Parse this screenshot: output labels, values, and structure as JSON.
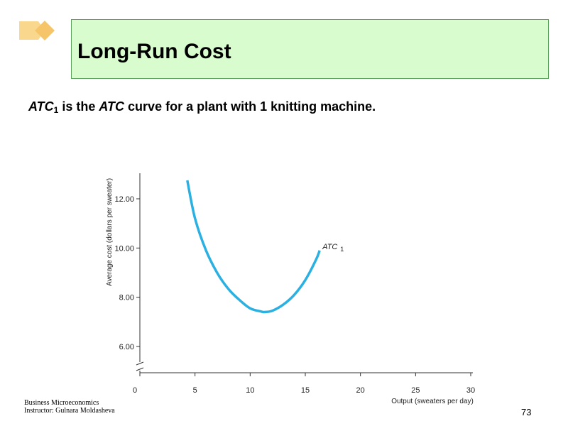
{
  "slide": {
    "title": "Long-Run Cost",
    "subtitle": {
      "part1": "ATC",
      "part1_sub": "1",
      "part2": " is the ",
      "part3": "ATC",
      "part4": " curve for a plant  with 1 knitting  machine."
    },
    "footer_line1": "Business Microeconomics",
    "footer_line2": "Instructor: Gulnara Moldasheva",
    "page_number": "73"
  },
  "colors": {
    "title_bg": "#d9fccf",
    "title_border": "#5aa05a",
    "logo": "#f9d88e",
    "curve": "#2bb0e2"
  },
  "icons": {
    "logo": "diamond-arrow-icon"
  },
  "chart_data": {
    "type": "line",
    "xlabel": "Output (sweaters per day)",
    "ylabel": "Average cost (dollars per sweater)",
    "xlim": [
      0,
      30
    ],
    "ylim": [
      6.0,
      13.0
    ],
    "axis_break": true,
    "x_ticks": [
      "0",
      "5",
      "10",
      "15",
      "20",
      "25",
      "30"
    ],
    "y_ticks": [
      "6.00",
      "8.00",
      "10.00",
      "12.00"
    ],
    "grid": false,
    "series": [
      {
        "name": "ATC 1",
        "label_main": "ATC",
        "label_sub": "1",
        "x": [
          4.3,
          5,
          6,
          7,
          8,
          9,
          10,
          11,
          11.3,
          12,
          13,
          14,
          15,
          16,
          16.3
        ],
        "y": [
          12.75,
          11.2,
          9.9,
          9.0,
          8.35,
          7.9,
          7.55,
          7.42,
          7.4,
          7.45,
          7.7,
          8.1,
          8.7,
          9.55,
          9.9
        ]
      }
    ]
  }
}
